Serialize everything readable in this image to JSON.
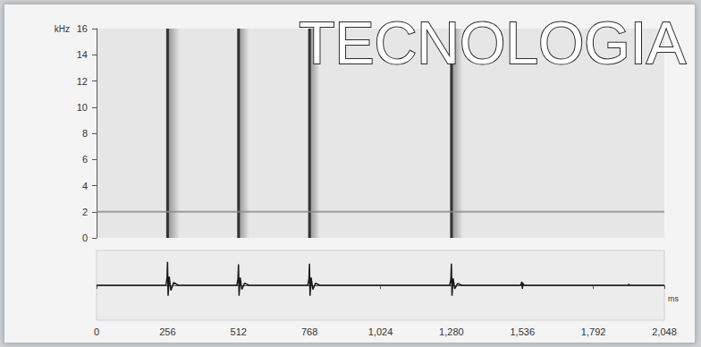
{
  "chart_data": [
    {
      "type": "spectrogram",
      "title": "TECNOLOGIA",
      "y_label": "kHz",
      "xlim": [
        0,
        2048
      ],
      "ylim": [
        0,
        16
      ],
      "yticks": [
        0,
        2,
        4,
        6,
        8,
        10,
        12,
        14,
        16
      ],
      "tick_labels": "y",
      "color": "#1a1a1a",
      "clicks": [
        {
          "time": 256,
          "decay_end": 300,
          "fmin": 0,
          "fmax": 16
        },
        {
          "time": 512,
          "decay_end": 550,
          "fmin": 0,
          "fmax": 16
        },
        {
          "time": 768,
          "decay_end": 805,
          "fmin": 0,
          "fmax": 16
        },
        {
          "time": 1280,
          "decay_end": 1320,
          "fmin": 0,
          "fmax": 16
        }
      ],
      "bands": [
        {
          "freq": 2,
          "start": 0,
          "end": 2048,
          "color": "#8a8a8a"
        }
      ]
    },
    {
      "type": "line",
      "x_label": "ms",
      "xlim": [
        0,
        2048
      ],
      "xticks": [
        0,
        256,
        512,
        768,
        1024,
        1280,
        1536,
        1792,
        2048
      ],
      "ylim": [
        -1,
        1
      ],
      "tick_labels": "x",
      "color": "#1a1a1a",
      "x": [
        0,
        250,
        254,
        256,
        258,
        262,
        268,
        278,
        295,
        506,
        510,
        512,
        514,
        518,
        524,
        534,
        550,
        762,
        766,
        768,
        770,
        774,
        780,
        790,
        805,
        1274,
        1278,
        1280,
        1282,
        1286,
        1292,
        1302,
        1318,
        1530,
        1534,
        1536,
        1538,
        1542,
        1918,
        1920,
        1922,
        2048
      ],
      "values": [
        0,
        0,
        0.2,
        0.67,
        -0.3,
        0.25,
        -0.15,
        0.08,
        0,
        0,
        0.18,
        0.6,
        -0.3,
        0.22,
        -0.12,
        0.06,
        0,
        0,
        0.18,
        0.62,
        -0.3,
        0.22,
        -0.12,
        0.06,
        0,
        0,
        0.18,
        0.62,
        -0.3,
        0.2,
        -0.1,
        0.05,
        0,
        0,
        0.1,
        -0.1,
        0.06,
        0,
        0,
        0.04,
        0,
        0
      ]
    }
  ]
}
